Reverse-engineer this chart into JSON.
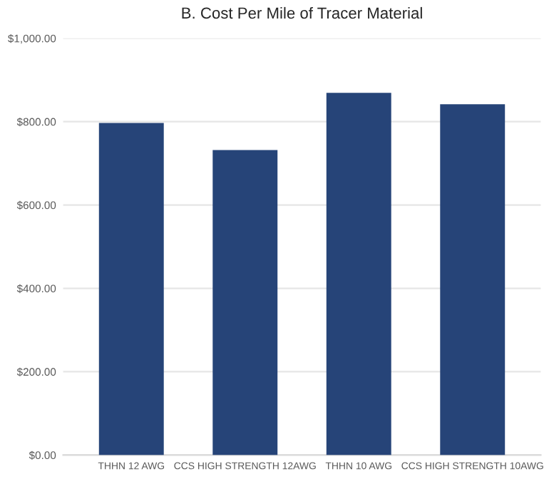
{
  "chart_data": {
    "type": "bar",
    "title": "B. Cost Per Mile of Tracer Material",
    "categories": [
      "THHN 12 AWG",
      "CCS HIGH STRENGTH 12AWG",
      "THHN 10 AWG",
      "CCS HIGH STRENGTH 10AWG"
    ],
    "values": [
      797,
      732,
      869,
      842
    ],
    "color": "#264478",
    "ylim": [
      0,
      1000
    ],
    "yticks": [
      {
        "value": 0,
        "label": "$0.00"
      },
      {
        "value": 200,
        "label": "$200.00"
      },
      {
        "value": 400,
        "label": "$400.00"
      },
      {
        "value": 600,
        "label": "$600.00"
      },
      {
        "value": 800,
        "label": "$800.00"
      },
      {
        "value": 1000,
        "label": "$1,000.00"
      }
    ],
    "grid": "y"
  }
}
